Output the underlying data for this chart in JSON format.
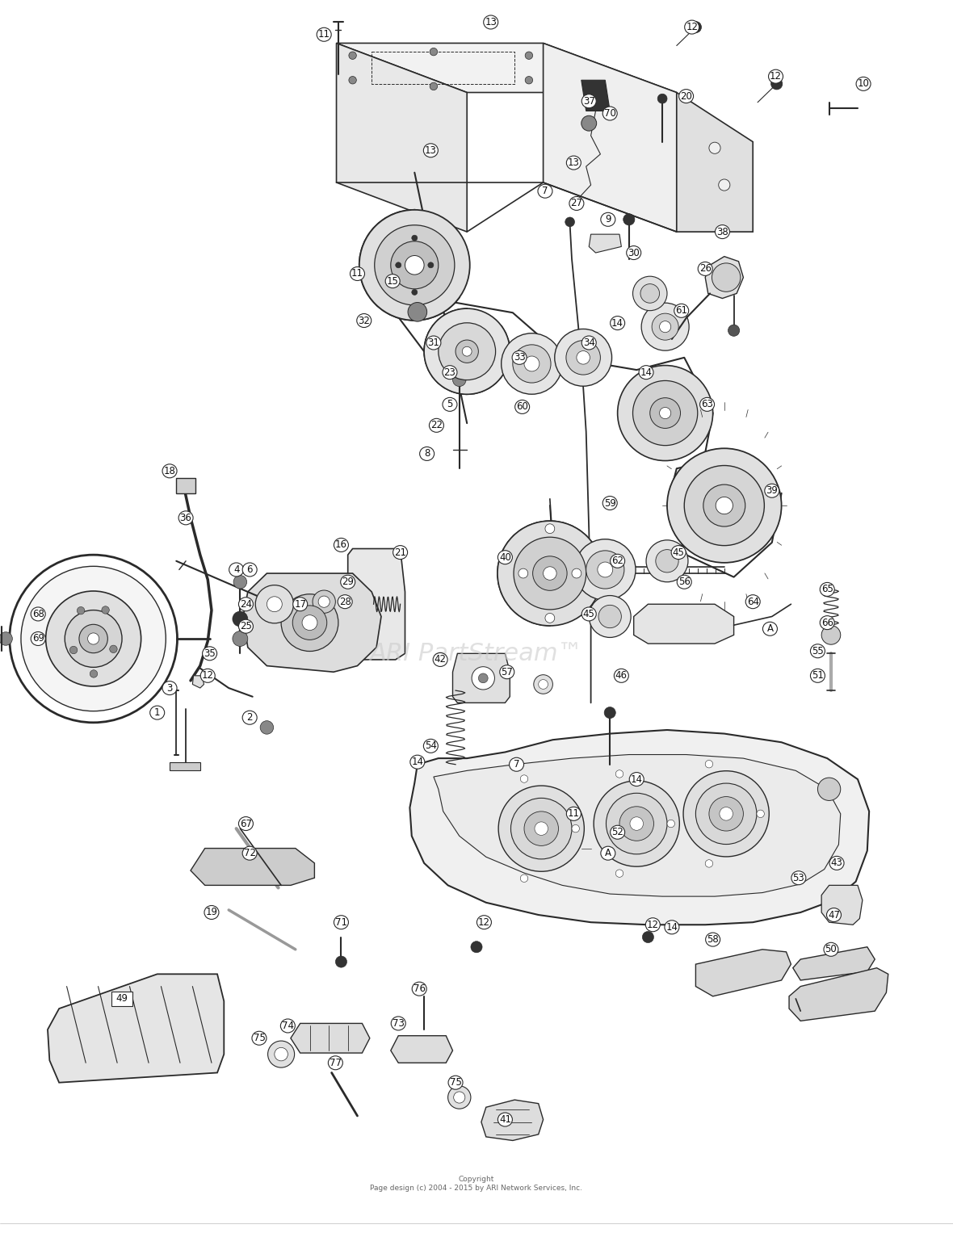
{
  "background_color": "#ffffff",
  "figure_width": 11.8,
  "figure_height": 15.27,
  "copyright_text": "Copyright\nPage design (c) 2004 - 2015 by ARI Network Services, Inc.",
  "watermark_text": "ARI PartStream™",
  "line_color": "#2a2a2a",
  "light_gray": "#d8d8d8",
  "mid_gray": "#b0b0b0",
  "dark_fill": "#404040"
}
